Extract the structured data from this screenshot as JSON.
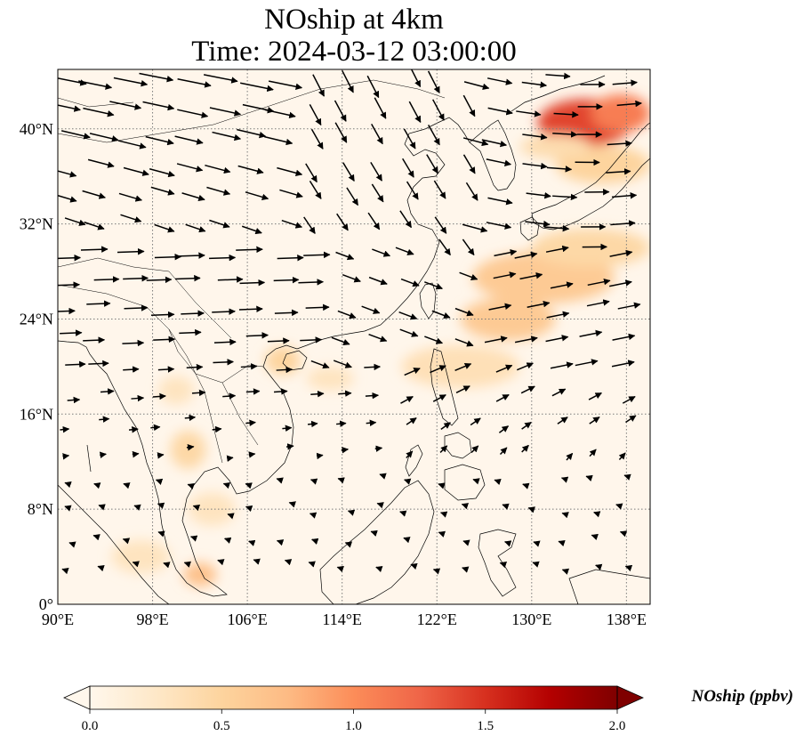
{
  "title": {
    "line1": "NOship at 4km",
    "line2": "Time: 2024-03-12 03:00:00"
  },
  "map": {
    "lon_range": [
      90,
      140
    ],
    "lat_range": [
      0,
      45
    ],
    "lon_ticks": [
      {
        "value": 90,
        "label": "90°E"
      },
      {
        "value": 98,
        "label": "98°E"
      },
      {
        "value": 106,
        "label": "106°E"
      },
      {
        "value": 114,
        "label": "114°E"
      },
      {
        "value": 122,
        "label": "122°E"
      },
      {
        "value": 130,
        "label": "130°E"
      },
      {
        "value": 138,
        "label": "138°E"
      }
    ],
    "lat_ticks": [
      {
        "value": 0,
        "label": "0°"
      },
      {
        "value": 8,
        "label": "8°N"
      },
      {
        "value": 16,
        "label": "16°N"
      },
      {
        "value": 24,
        "label": "24°N"
      },
      {
        "value": 32,
        "label": "32°N"
      },
      {
        "value": 40,
        "label": "40°N"
      }
    ],
    "gridlines": true,
    "background_color": "#fff6eb",
    "coast_color": "#000000"
  },
  "colorbar": {
    "label": "NOship (ppbv)",
    "min": 0.0,
    "max": 2.0,
    "extend": "both",
    "colormap": "OrRd",
    "ticks": [
      {
        "value": 0.0,
        "label": "0.0"
      },
      {
        "value": 0.5,
        "label": "0.5"
      },
      {
        "value": 1.0,
        "label": "1.0"
      },
      {
        "value": 1.5,
        "label": "1.5"
      },
      {
        "value": 2.0,
        "label": "2.0"
      }
    ],
    "stops": [
      "#fff7ec",
      "#fee8c8",
      "#fdd49e",
      "#fdbb84",
      "#fc8d59",
      "#ef6548",
      "#d7301f",
      "#b30000",
      "#7f0000"
    ]
  },
  "concentration_features": [
    {
      "lon": 134.5,
      "lat": 40.5,
      "rlon": 4,
      "rlat": 2,
      "value": 1.4
    },
    {
      "lon": 137.5,
      "lat": 41.3,
      "rlon": 2.5,
      "rlat": 1.6,
      "value": 1.1
    },
    {
      "lon": 136,
      "lat": 37,
      "rlon": 4,
      "rlat": 1.6,
      "value": 0.5
    },
    {
      "lon": 132,
      "lat": 38.5,
      "rlon": 3,
      "rlat": 1.0,
      "value": 0.4
    },
    {
      "lon": 131,
      "lat": 27.5,
      "rlon": 6,
      "rlat": 2.2,
      "value": 0.6
    },
    {
      "lon": 128,
      "lat": 24,
      "rlon": 4,
      "rlat": 1.8,
      "value": 0.6
    },
    {
      "lon": 135,
      "lat": 30,
      "rlon": 5,
      "rlat": 1.6,
      "value": 0.45
    },
    {
      "lon": 124,
      "lat": 20,
      "rlon": 5,
      "rlat": 1.8,
      "value": 0.35
    },
    {
      "lon": 109,
      "lat": 20.5,
      "rlon": 1.5,
      "rlat": 1.2,
      "value": 0.5
    },
    {
      "lon": 113,
      "lat": 19,
      "rlon": 2,
      "rlat": 1.0,
      "value": 0.3
    },
    {
      "lon": 101,
      "lat": 13,
      "rlon": 1.5,
      "rlat": 1.6,
      "value": 0.45
    },
    {
      "lon": 103,
      "lat": 8,
      "rlon": 2,
      "rlat": 1.4,
      "value": 0.3
    },
    {
      "lon": 102,
      "lat": 2.5,
      "rlon": 1.4,
      "rlat": 1.0,
      "value": 0.7
    },
    {
      "lon": 97,
      "lat": 4,
      "rlon": 2.5,
      "rlat": 1.4,
      "value": 0.3
    },
    {
      "lon": 100,
      "lat": 18,
      "rlon": 1.5,
      "rlat": 1.2,
      "value": 0.3
    }
  ],
  "wind_field": {
    "description_free": true
  }
}
